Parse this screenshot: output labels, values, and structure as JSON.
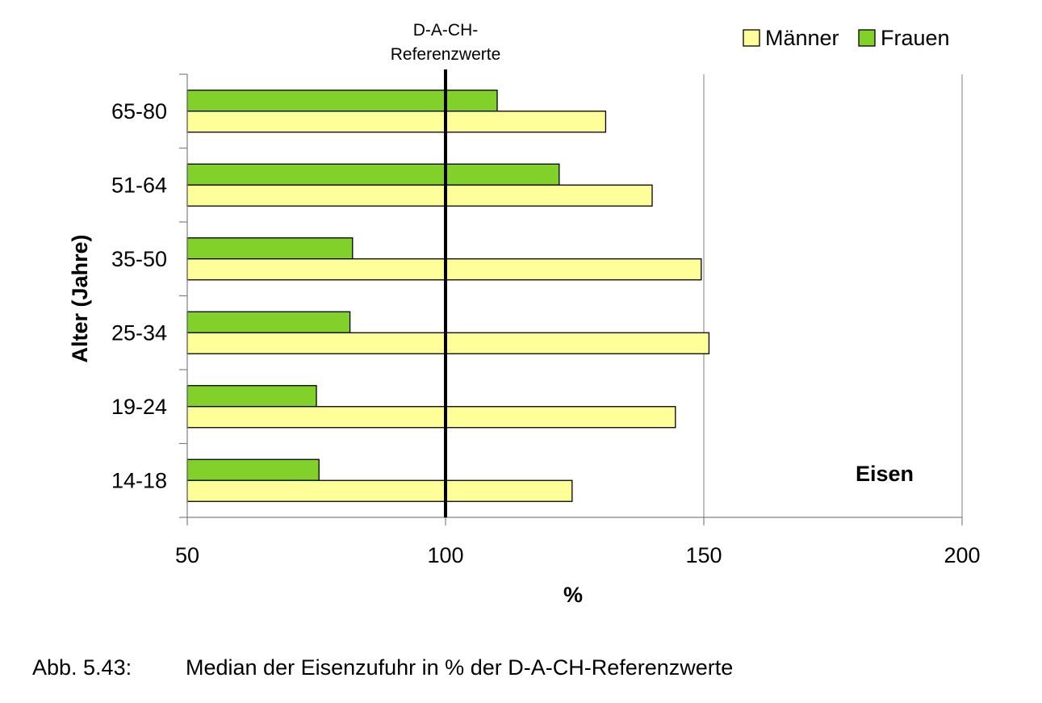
{
  "chart_data": {
    "type": "bar",
    "orientation": "horizontal",
    "categories": [
      "65-80",
      "51-64",
      "35-50",
      "25-34",
      "19-24",
      "14-18"
    ],
    "series": [
      {
        "name": "Frauen",
        "values": [
          110,
          122,
          82,
          81.5,
          75,
          75.5
        ],
        "color": "#82d12b"
      },
      {
        "name": "Männer",
        "values": [
          131,
          140,
          149.5,
          151,
          144.5,
          124.5
        ],
        "color": "#ffff99"
      }
    ],
    "legend_order": [
      "Männer",
      "Frauen"
    ],
    "legend_position": "top-right",
    "xlabel": "%",
    "ylabel": "Alter (Jahre)",
    "xlim": [
      50,
      200
    ],
    "xticks": [
      "50",
      "100",
      "150",
      "200"
    ],
    "gridlines_x": [
      150,
      200
    ],
    "reference_line": {
      "value": 100,
      "label_line1": "D-A-CH-",
      "label_line2": "Referenzwerte"
    },
    "annotation": "Eisen"
  },
  "caption": {
    "number": "Abb. 5.43:",
    "text": "Median der Eisenzufuhr in % der D-A-CH-Referenzwerte"
  }
}
